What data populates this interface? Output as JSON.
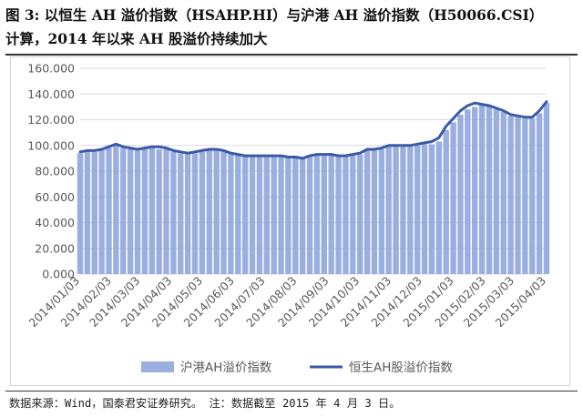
{
  "title_line1": "图 3:  以恒生 AH 溢价指数（HSAHP.HI）与沪港 AH 溢价指数（H50066.CSI）",
  "title_line2": "计算，2014 年以来 AH 股溢价持续加大",
  "source": "数据来源：Wind，国泰君安证券研究。 注：数据截至 2015 年 4 月 3 日。",
  "colors": {
    "bar_series": "#9aaee0",
    "line_series": "#3a5aa7",
    "grid": "#d9d9d9",
    "axis_text": "#595959"
  },
  "chart_data": {
    "type": "bar",
    "xlabel": "",
    "ylabel": "",
    "ylim": [
      0,
      160
    ],
    "y_ticks": [
      "0.000",
      "20.000",
      "40.000",
      "60.000",
      "80.000",
      "100.000",
      "120.000",
      "140.000",
      "160.000"
    ],
    "y_tick_values": [
      0,
      20,
      40,
      60,
      80,
      100,
      120,
      140,
      160
    ],
    "x_ticks": [
      "2014/01/03",
      "2014/02/03",
      "2014/03/03",
      "2014/04/03",
      "2014/05/03",
      "2014/06/03",
      "2014/07/03",
      "2014/08/03",
      "2014/09/03",
      "2014/10/03",
      "2014/11/03",
      "2014/12/03",
      "2015/01/03",
      "2015/02/03",
      "2015/03/03",
      "2015/04/03"
    ],
    "grid": true,
    "legend_position": "bottom",
    "series": [
      {
        "name": "沪港AH溢价指数",
        "type": "bar",
        "x": [
          "2014/01/03",
          "2014/01/10",
          "2014/01/17",
          "2014/01/24",
          "2014/01/31",
          "2014/02/07",
          "2014/02/14",
          "2014/02/21",
          "2014/02/28",
          "2014/03/07",
          "2014/03/14",
          "2014/03/21",
          "2014/03/28",
          "2014/04/04",
          "2014/04/11",
          "2014/04/18",
          "2014/04/25",
          "2014/05/02",
          "2014/05/09",
          "2014/05/16",
          "2014/05/23",
          "2014/05/30",
          "2014/06/06",
          "2014/06/13",
          "2014/06/20",
          "2014/06/27",
          "2014/07/04",
          "2014/07/11",
          "2014/07/18",
          "2014/07/25",
          "2014/08/01",
          "2014/08/08",
          "2014/08/15",
          "2014/08/22",
          "2014/08/29",
          "2014/09/05",
          "2014/09/12",
          "2014/09/19",
          "2014/09/26",
          "2014/10/03",
          "2014/10/10",
          "2014/10/17",
          "2014/10/24",
          "2014/10/31",
          "2014/11/07",
          "2014/11/14",
          "2014/11/21",
          "2014/11/28",
          "2014/12/05",
          "2014/12/12",
          "2014/12/19",
          "2014/12/26",
          "2015/01/02",
          "2015/01/09",
          "2015/01/16",
          "2015/01/23",
          "2015/01/30",
          "2015/02/06",
          "2015/02/13",
          "2015/02/20",
          "2015/02/27",
          "2015/03/06",
          "2015/03/13",
          "2015/03/20",
          "2015/03/27",
          "2015/04/03"
        ],
        "values": [
          94,
          95,
          95,
          97,
          98,
          100,
          98,
          97,
          96,
          97,
          98,
          97,
          97,
          95,
          94,
          94,
          94,
          95,
          96,
          96,
          95,
          94,
          93,
          92,
          92,
          92,
          92,
          92,
          92,
          91,
          91,
          90,
          91,
          92,
          92,
          92,
          92,
          91,
          92,
          93,
          96,
          96,
          97,
          99,
          99,
          99,
          99,
          100,
          101,
          101,
          103,
          112,
          118,
          124,
          128,
          130,
          131,
          131,
          128,
          126,
          123,
          122,
          121,
          121,
          125,
          133
        ]
      },
      {
        "name": "恒生AH股溢价指数",
        "type": "line",
        "x": [
          "2014/01/03",
          "2014/01/10",
          "2014/01/17",
          "2014/01/24",
          "2014/01/31",
          "2014/02/07",
          "2014/02/14",
          "2014/02/21",
          "2014/02/28",
          "2014/03/07",
          "2014/03/14",
          "2014/03/21",
          "2014/03/28",
          "2014/04/04",
          "2014/04/11",
          "2014/04/18",
          "2014/04/25",
          "2014/05/02",
          "2014/05/09",
          "2014/05/16",
          "2014/05/23",
          "2014/05/30",
          "2014/06/06",
          "2014/06/13",
          "2014/06/20",
          "2014/06/27",
          "2014/07/04",
          "2014/07/11",
          "2014/07/18",
          "2014/07/25",
          "2014/08/01",
          "2014/08/08",
          "2014/08/15",
          "2014/08/22",
          "2014/08/29",
          "2014/09/05",
          "2014/09/12",
          "2014/09/19",
          "2014/09/26",
          "2014/10/03",
          "2014/10/10",
          "2014/10/17",
          "2014/10/24",
          "2014/10/31",
          "2014/11/07",
          "2014/11/14",
          "2014/11/21",
          "2014/11/28",
          "2014/12/05",
          "2014/12/12",
          "2014/12/19",
          "2014/12/26",
          "2015/01/02",
          "2015/01/09",
          "2015/01/16",
          "2015/01/23",
          "2015/01/30",
          "2015/02/06",
          "2015/02/13",
          "2015/02/20",
          "2015/02/27",
          "2015/03/06",
          "2015/03/13",
          "2015/03/20",
          "2015/03/27",
          "2015/04/03"
        ],
        "values": [
          95,
          96,
          96,
          97,
          99,
          101,
          99,
          98,
          97,
          98,
          99,
          99,
          98,
          96,
          95,
          94,
          95,
          96,
          97,
          97,
          96,
          94,
          93,
          92,
          92,
          92,
          92,
          92,
          92,
          91,
          91,
          90,
          92,
          93,
          93,
          93,
          92,
          92,
          93,
          94,
          97,
          97,
          98,
          100,
          100,
          100,
          100,
          101,
          102,
          103,
          106,
          115,
          121,
          127,
          131,
          133,
          132,
          131,
          129,
          127,
          124,
          123,
          122,
          122,
          127,
          134
        ]
      }
    ]
  }
}
